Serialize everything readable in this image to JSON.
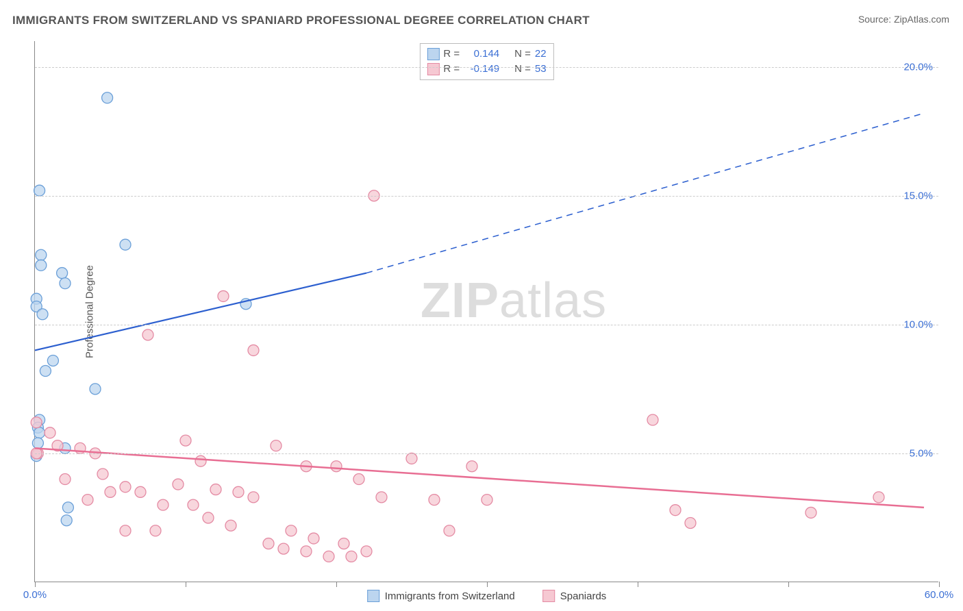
{
  "title": "IMMIGRANTS FROM SWITZERLAND VS SPANIARD PROFESSIONAL DEGREE CORRELATION CHART",
  "source_label": "Source: ZipAtlas.com",
  "watermark": {
    "part1": "ZIP",
    "part2": "atlas"
  },
  "y_axis_label": "Professional Degree",
  "chart": {
    "type": "scatter-with-trend",
    "xlim": [
      0,
      60
    ],
    "ylim": [
      0,
      21
    ],
    "x_ticks": [
      0,
      10,
      20,
      30,
      40,
      50,
      60
    ],
    "x_tick_labels_shown": {
      "0": "0.0%",
      "60": "60.0%"
    },
    "y_ticks": [
      5,
      10,
      15,
      20
    ],
    "y_tick_labels": {
      "5": "5.0%",
      "10": "10.0%",
      "15": "15.0%",
      "20": "20.0%"
    },
    "grid_color": "#cccccc",
    "axis_color": "#888888",
    "background_color": "#ffffff",
    "tick_label_color": "#3b6fd4"
  },
  "legend_top": {
    "rows": [
      {
        "r_label": "R =",
        "r_value": "0.144",
        "n_label": "N =",
        "n_value": "22",
        "swatch_fill": "#bcd5ef",
        "swatch_border": "#6a9fd8"
      },
      {
        "r_label": "R =",
        "r_value": "-0.149",
        "n_label": "N =",
        "n_value": "53",
        "swatch_fill": "#f6c8d2",
        "swatch_border": "#e48aa3"
      }
    ],
    "label_color": "#555555",
    "value_color": "#3b6fd4"
  },
  "legend_bottom": {
    "items": [
      {
        "label": "Immigrants from Switzerland",
        "swatch_fill": "#bcd5ef",
        "swatch_border": "#6a9fd8"
      },
      {
        "label": "Spaniards",
        "swatch_fill": "#f6c8d2",
        "swatch_border": "#e48aa3"
      }
    ]
  },
  "series": [
    {
      "name": "Immigrants from Switzerland",
      "color_fill": "#bcd5ef",
      "color_stroke": "#6a9fd8",
      "marker_radius": 8,
      "trend": {
        "color": "#2c5fcf",
        "width": 2.2,
        "solid_x_range": [
          0,
          22
        ],
        "dashed_x_range": [
          22,
          59
        ],
        "y_start": 9.0,
        "y_end_solid": 12.0,
        "y_end_dashed": 18.2
      },
      "points": [
        {
          "x": 0.3,
          "y": 15.2
        },
        {
          "x": 4.8,
          "y": 18.8
        },
        {
          "x": 0.4,
          "y": 12.7
        },
        {
          "x": 0.4,
          "y": 12.3
        },
        {
          "x": 1.8,
          "y": 12.0
        },
        {
          "x": 6.0,
          "y": 13.1
        },
        {
          "x": 0.1,
          "y": 11.0
        },
        {
          "x": 0.1,
          "y": 10.7
        },
        {
          "x": 0.5,
          "y": 10.4
        },
        {
          "x": 1.2,
          "y": 8.6
        },
        {
          "x": 0.7,
          "y": 8.2
        },
        {
          "x": 4.0,
          "y": 7.5
        },
        {
          "x": 2.0,
          "y": 11.6
        },
        {
          "x": 14.0,
          "y": 10.8
        },
        {
          "x": 0.3,
          "y": 6.3
        },
        {
          "x": 0.1,
          "y": 4.9
        },
        {
          "x": 2.2,
          "y": 2.9
        },
        {
          "x": 2.1,
          "y": 2.4
        },
        {
          "x": 0.2,
          "y": 6.0
        },
        {
          "x": 0.3,
          "y": 5.8
        },
        {
          "x": 2.0,
          "y": 5.2
        },
        {
          "x": 0.2,
          "y": 5.4
        }
      ]
    },
    {
      "name": "Spaniards",
      "color_fill": "#f6c8d2",
      "color_stroke": "#e48aa3",
      "marker_radius": 8,
      "trend": {
        "color": "#e86e93",
        "width": 2.5,
        "solid_x_range": [
          0,
          59
        ],
        "y_start": 5.2,
        "y_end_solid": 2.9
      },
      "points": [
        {
          "x": 22.5,
          "y": 15.0
        },
        {
          "x": 12.5,
          "y": 11.1
        },
        {
          "x": 7.5,
          "y": 9.6
        },
        {
          "x": 10.0,
          "y": 5.5
        },
        {
          "x": 14.5,
          "y": 9.0
        },
        {
          "x": 11.0,
          "y": 4.7
        },
        {
          "x": 0.1,
          "y": 6.2
        },
        {
          "x": 16.0,
          "y": 5.3
        },
        {
          "x": 18.0,
          "y": 4.5
        },
        {
          "x": 0.2,
          "y": 5.0
        },
        {
          "x": 1.5,
          "y": 5.3
        },
        {
          "x": 3.0,
          "y": 5.2
        },
        {
          "x": 4.0,
          "y": 5.0
        },
        {
          "x": 2.0,
          "y": 4.0
        },
        {
          "x": 4.5,
          "y": 4.2
        },
        {
          "x": 6.0,
          "y": 3.7
        },
        {
          "x": 7.0,
          "y": 3.5
        },
        {
          "x": 8.5,
          "y": 3.0
        },
        {
          "x": 6.0,
          "y": 2.0
        },
        {
          "x": 8.0,
          "y": 2.0
        },
        {
          "x": 10.5,
          "y": 3.0
        },
        {
          "x": 12.0,
          "y": 3.6
        },
        {
          "x": 13.0,
          "y": 2.2
        },
        {
          "x": 13.5,
          "y": 3.5
        },
        {
          "x": 14.5,
          "y": 3.3
        },
        {
          "x": 15.5,
          "y": 1.5
        },
        {
          "x": 16.5,
          "y": 1.3
        },
        {
          "x": 17.0,
          "y": 2.0
        },
        {
          "x": 18.0,
          "y": 1.2
        },
        {
          "x": 18.5,
          "y": 1.7
        },
        {
          "x": 19.5,
          "y": 1.0
        },
        {
          "x": 20.5,
          "y": 1.5
        },
        {
          "x": 22.0,
          "y": 1.2
        },
        {
          "x": 20.0,
          "y": 4.5
        },
        {
          "x": 21.5,
          "y": 4.0
        },
        {
          "x": 23.0,
          "y": 3.3
        },
        {
          "x": 25.0,
          "y": 4.8
        },
        {
          "x": 26.5,
          "y": 3.2
        },
        {
          "x": 27.5,
          "y": 2.0
        },
        {
          "x": 29.0,
          "y": 4.5
        },
        {
          "x": 30.0,
          "y": 3.2
        },
        {
          "x": 41.0,
          "y": 6.3
        },
        {
          "x": 42.5,
          "y": 2.8
        },
        {
          "x": 43.5,
          "y": 2.3
        },
        {
          "x": 51.5,
          "y": 2.7
        },
        {
          "x": 56.0,
          "y": 3.3
        },
        {
          "x": 0.1,
          "y": 5.0
        },
        {
          "x": 1.0,
          "y": 5.8
        },
        {
          "x": 3.5,
          "y": 3.2
        },
        {
          "x": 5.0,
          "y": 3.5
        },
        {
          "x": 9.5,
          "y": 3.8
        },
        {
          "x": 11.5,
          "y": 2.5
        },
        {
          "x": 21.0,
          "y": 1.0
        }
      ]
    }
  ]
}
